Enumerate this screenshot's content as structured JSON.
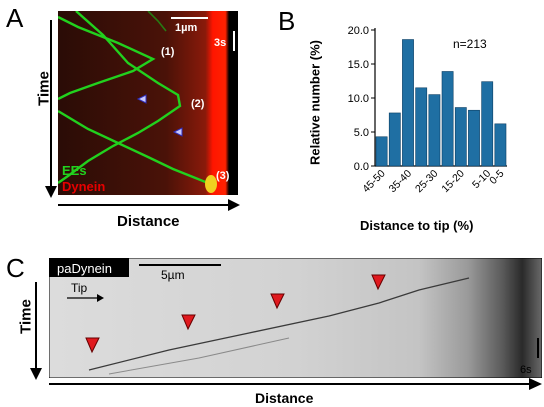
{
  "panels": {
    "a": {
      "label": "A",
      "y_axis": "Time",
      "x_axis": "Distance",
      "scale_bar_distance": "1µm",
      "scale_bar_time": "3s",
      "legend_ees": "EEs",
      "legend_dynein": "Dynein",
      "colors": {
        "ees": "#22d11e",
        "dynein": "#e60000"
      },
      "annotations": [
        "(1)",
        "(2)",
        "(3)"
      ]
    },
    "b": {
      "label": "B",
      "n_text": "n=213"
    },
    "c": {
      "label": "C",
      "title": "paDynein",
      "scale_bar_distance": "5µm",
      "tip_label": "Tip",
      "scale_bar_time": "6s",
      "y_axis": "Time",
      "x_axis": "Distance",
      "arrow_color": "#e0191e"
    }
  },
  "chart_data": {
    "type": "bar",
    "categories": [
      "45-50",
      "35-40",
      "25-30",
      "15-20",
      "5-10",
      "0-5"
    ],
    "x": [
      "45-50",
      "40-45",
      "35-40",
      "30-35",
      "25-30",
      "20-25",
      "15-20",
      "10-15",
      "5-10",
      "0-5"
    ],
    "values": [
      4.3,
      7.8,
      18.6,
      11.5,
      10.5,
      13.9,
      8.6,
      8.2,
      12.4,
      6.2
    ],
    "xlabel": "Distance to tip (%)",
    "ylabel": "Relative number (%)",
    "yticks": [
      "0.0",
      "5.0",
      "10.0",
      "15.0",
      "20.0"
    ],
    "ylim": [
      0,
      20
    ],
    "bar_color": "#1f6fa3",
    "grid": false
  }
}
